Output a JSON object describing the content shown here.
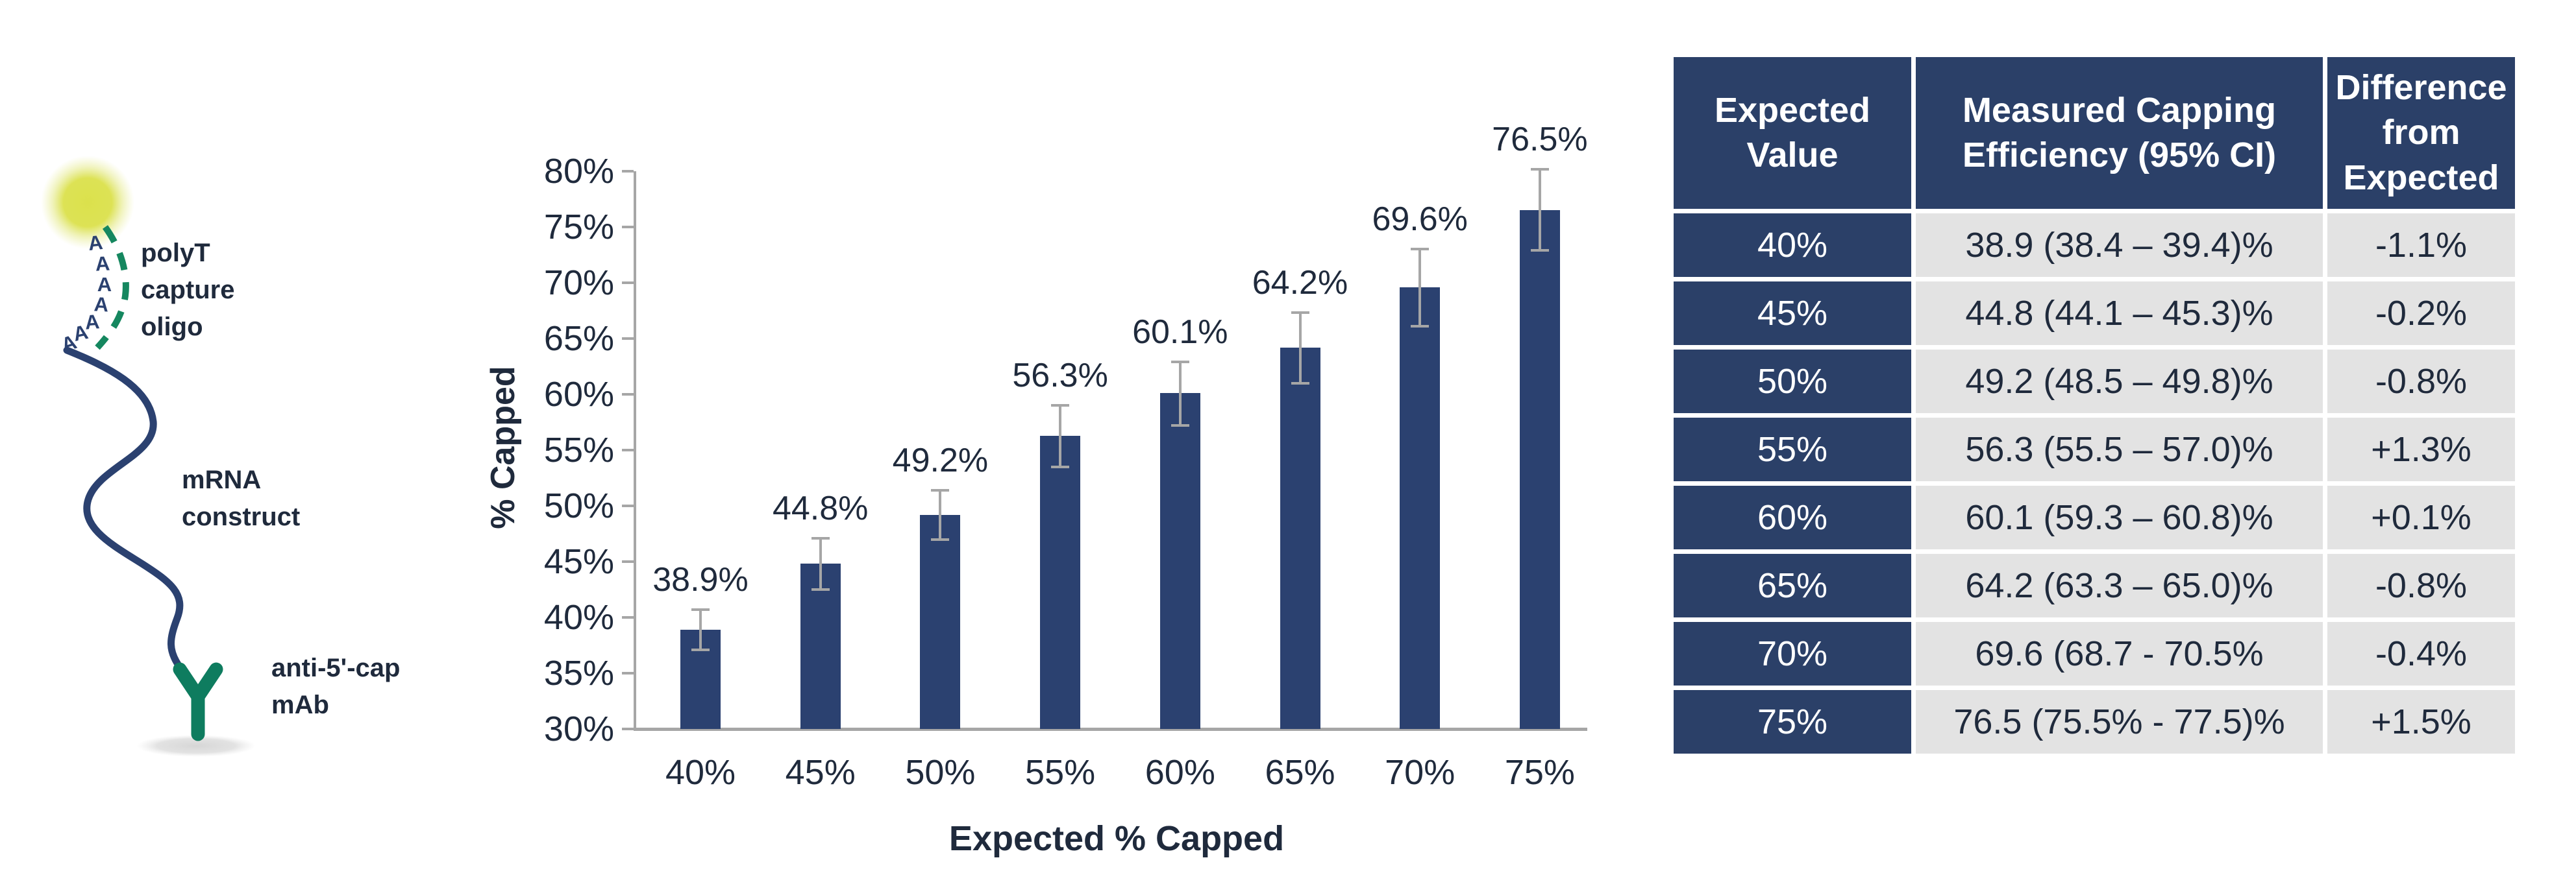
{
  "diagram": {
    "polya_letter": "A",
    "polya_count": 7,
    "labels": {
      "polyt": [
        "polyT",
        "capture",
        "oligo"
      ],
      "mrna": [
        "mRNA",
        "construct"
      ],
      "mab": [
        "anti-5'-cap",
        "mAb"
      ]
    },
    "icon_names": [
      "fluorophore-glow-icon",
      "polya-tail",
      "polyt-oligo-dashed-curve",
      "mrna-squiggle",
      "antibody-y-icon",
      "surface-shadow"
    ],
    "colors": {
      "navy": "#2B4170",
      "green_solid": "#0E7C5F",
      "green_dash": "#15875F",
      "yellow": "#DCE24E",
      "shadow_gray": "#D8D8D8",
      "label_text": "#1F2A3C"
    }
  },
  "chart_data": {
    "type": "bar",
    "title": "",
    "xlabel": "Expected % Capped",
    "ylabel": "% Capped",
    "categories": [
      "40%",
      "45%",
      "50%",
      "55%",
      "60%",
      "65%",
      "70%",
      "75%"
    ],
    "values": [
      38.9,
      44.8,
      49.2,
      56.3,
      60.1,
      64.2,
      69.6,
      76.5
    ],
    "value_labels": [
      "38.9%",
      "44.8%",
      "49.2%",
      "56.3%",
      "60.1%",
      "64.2%",
      "69.6%",
      "76.5%"
    ],
    "error_plus": [
      1.8,
      2.3,
      2.2,
      2.7,
      2.8,
      3.1,
      3.4,
      3.7
    ],
    "error_minus": [
      1.8,
      2.3,
      2.2,
      2.8,
      2.9,
      3.2,
      3.5,
      3.6
    ],
    "ylim": [
      30,
      80
    ],
    "ytick_step": 5,
    "ytick_labels": [
      "30%",
      "35%",
      "40%",
      "45%",
      "50%",
      "55%",
      "60%",
      "65%",
      "70%",
      "75%",
      "80%"
    ],
    "grid": false,
    "legend": null,
    "bar_color": "#2B4170",
    "error_color": "#A6A6A6",
    "axis_color": "#A6A6A6",
    "text_color": "#1F2A3C"
  },
  "table": {
    "headers": [
      "Expected Value",
      "Measured Capping Efficiency (95% CI)",
      "Difference from Expected"
    ],
    "rows": [
      {
        "expected": "40%",
        "measured": "38.9 (38.4 – 39.4)%",
        "difference": "-1.1%"
      },
      {
        "expected": "45%",
        "measured": "44.8 (44.1 – 45.3)%",
        "difference": "-0.2%"
      },
      {
        "expected": "50%",
        "measured": "49.2 (48.5 – 49.8)%",
        "difference": "-0.8%"
      },
      {
        "expected": "55%",
        "measured": "56.3 (55.5 – 57.0)%",
        "difference": "+1.3%"
      },
      {
        "expected": "60%",
        "measured": "60.1 (59.3 – 60.8)%",
        "difference": "+0.1%"
      },
      {
        "expected": "65%",
        "measured": "64.2 (63.3 – 65.0)%",
        "difference": "-0.8%"
      },
      {
        "expected": "70%",
        "measured": "69.6 (68.7 - 70.5%",
        "difference": "-0.4%"
      },
      {
        "expected": "75%",
        "measured": "76.5 (75.5% - 77.5)%",
        "difference": "+1.5%"
      }
    ],
    "colors": {
      "header_bg": "#2B4068",
      "row_label_bg": "#2B4068",
      "cell_bg": "#E3E3E3",
      "header_text": "#FFFFFF",
      "cell_text": "#1F2A3C"
    }
  }
}
